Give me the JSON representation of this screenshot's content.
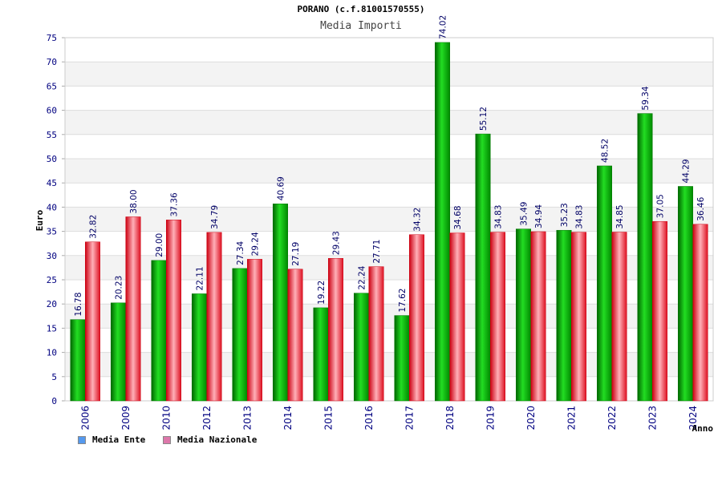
{
  "chart_data": {
    "type": "bar",
    "title": "PORANO (c.f.81001570555)",
    "subtitle": "Media Importi",
    "xlabel": "Anno",
    "ylabel": "Euro",
    "ylim": [
      0,
      75
    ],
    "yticks": [
      0,
      5,
      10,
      15,
      20,
      25,
      30,
      35,
      40,
      45,
      50,
      55,
      60,
      65,
      70,
      75
    ],
    "grid": true,
    "legend_position": "bottom-left",
    "categories": [
      "2006",
      "2009",
      "2010",
      "2012",
      "2013",
      "2014",
      "2015",
      "2016",
      "2017",
      "2018",
      "2019",
      "2020",
      "2021",
      "2022",
      "2023",
      "2024"
    ],
    "series": [
      {
        "name": "Media Ente",
        "color": "#00aa00",
        "legend_color": "#5599ee",
        "values": [
          16.78,
          20.23,
          29.0,
          22.11,
          27.34,
          40.69,
          19.22,
          22.24,
          17.62,
          74.02,
          55.12,
          35.49,
          35.23,
          48.52,
          59.34,
          44.29
        ],
        "labels": [
          "16.78",
          "20.23",
          "29.00",
          "22.11",
          "27.34",
          "40.69",
          "19.22",
          "22.24",
          "17.62",
          "74.02",
          "55.12",
          "35.49",
          "35.23",
          "48.52",
          "59.34",
          "44.29"
        ]
      },
      {
        "name": "Media Nazionale",
        "color": "#ee2233",
        "legend_color": "#dd77aa",
        "values": [
          32.82,
          38.0,
          37.36,
          34.79,
          29.24,
          27.19,
          29.43,
          27.71,
          34.32,
          34.68,
          34.83,
          34.94,
          34.83,
          34.85,
          37.05,
          36.46
        ],
        "labels": [
          "32.82",
          "38.00",
          "37.36",
          "34.79",
          "29.24",
          "27.19",
          "29.43",
          "27.71",
          "34.32",
          "34.68",
          "34.83",
          "34.94",
          "34.83",
          "34.85",
          "37.05",
          "36.46"
        ]
      }
    ]
  }
}
